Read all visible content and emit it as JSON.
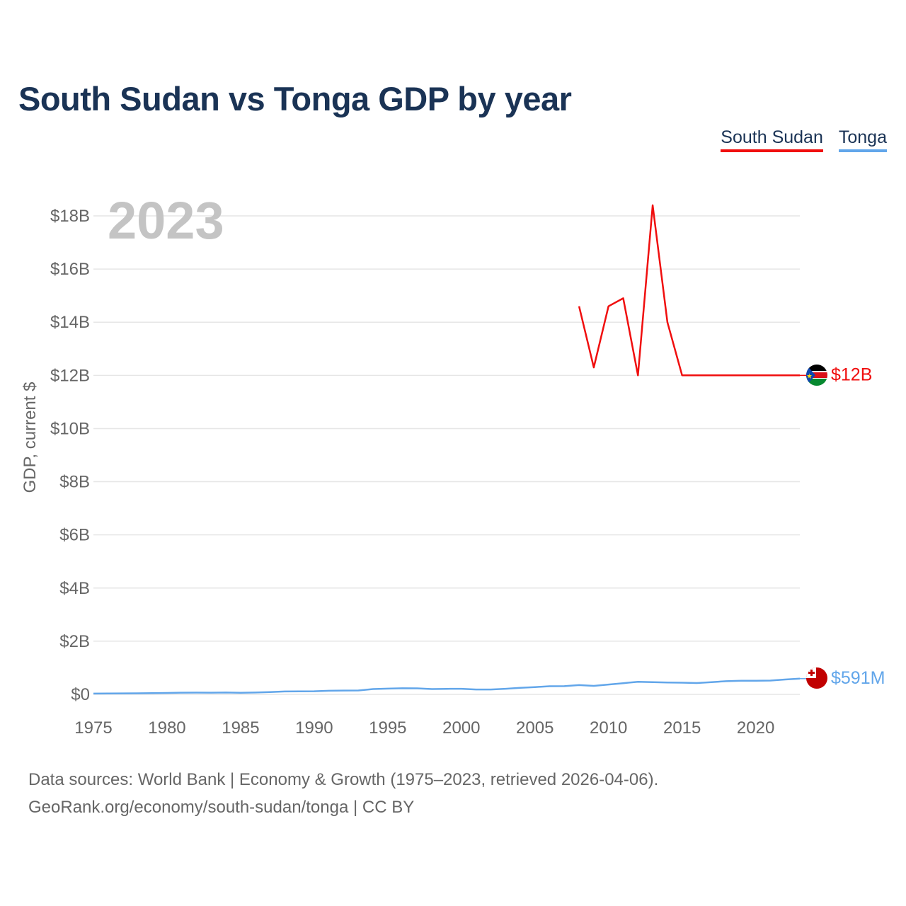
{
  "title": "South Sudan vs Tonga GDP by year",
  "legend": [
    {
      "label": "South Sudan",
      "color": "#f00e0e"
    },
    {
      "label": "Tonga",
      "color": "#62a6ea"
    }
  ],
  "year_label": "2023",
  "source": {
    "line1": "Data sources: World Bank | Economy & Growth (1975–2023, retrieved 2026-04-06).",
    "line2": "GeoRank.org/economy/south-sudan/tonga | CC BY"
  },
  "chart_data": {
    "type": "line",
    "title": "South Sudan vs Tonga GDP by year",
    "xlabel": "",
    "ylabel": "GDP, current $",
    "xlim": [
      1975,
      2023
    ],
    "ylim": [
      0,
      18000000000
    ],
    "x_ticks": [
      1975,
      1980,
      1985,
      1990,
      1995,
      2000,
      2005,
      2010,
      2015,
      2020
    ],
    "y_ticks": [
      {
        "value": 0,
        "label": "$0"
      },
      {
        "value": 2000000000,
        "label": "$2B"
      },
      {
        "value": 4000000000,
        "label": "$4B"
      },
      {
        "value": 6000000000,
        "label": "$6B"
      },
      {
        "value": 8000000000,
        "label": "$8B"
      },
      {
        "value": 10000000000,
        "label": "$10B"
      },
      {
        "value": 12000000000,
        "label": "$12B"
      },
      {
        "value": 14000000000,
        "label": "$14B"
      },
      {
        "value": 16000000000,
        "label": "$16B"
      },
      {
        "value": 18000000000,
        "label": "$18B"
      }
    ],
    "series": [
      {
        "name": "South Sudan",
        "color": "#f00e0e",
        "end_label": "$12B",
        "x": [
          2008,
          2009,
          2010,
          2011,
          2012,
          2013,
          2014,
          2015,
          2016,
          2017,
          2018,
          2019,
          2020,
          2021,
          2022,
          2023
        ],
        "values": [
          14600000000,
          12300000000,
          14600000000,
          14900000000,
          12000000000,
          18400000000,
          14000000000,
          12000000000,
          12000000000,
          12000000000,
          12000000000,
          12000000000,
          12000000000,
          12000000000,
          12000000000,
          12000000000
        ]
      },
      {
        "name": "Tonga",
        "color": "#62a6ea",
        "end_label": "$591M",
        "x": [
          1975,
          1976,
          1977,
          1978,
          1979,
          1980,
          1981,
          1982,
          1983,
          1984,
          1985,
          1986,
          1987,
          1988,
          1989,
          1990,
          1991,
          1992,
          1993,
          1994,
          1995,
          1996,
          1997,
          1998,
          1999,
          2000,
          2001,
          2002,
          2003,
          2004,
          2005,
          2006,
          2007,
          2008,
          2009,
          2010,
          2011,
          2012,
          2013,
          2014,
          2015,
          2016,
          2017,
          2018,
          2019,
          2020,
          2021,
          2022,
          2023
        ],
        "values": [
          30000000,
          33000000,
          36000000,
          40000000,
          46000000,
          54000000,
          65000000,
          67000000,
          64000000,
          70000000,
          58000000,
          69000000,
          86000000,
          110000000,
          112000000,
          118000000,
          135000000,
          145000000,
          147000000,
          200000000,
          215000000,
          230000000,
          225000000,
          200000000,
          207000000,
          210000000,
          185000000,
          185000000,
          210000000,
          245000000,
          275000000,
          305000000,
          310000000,
          350000000,
          320000000,
          370000000,
          420000000,
          475000000,
          460000000,
          445000000,
          440000000,
          425000000,
          460000000,
          495000000,
          510000000,
          510000000,
          520000000,
          560000000,
          591000000
        ]
      }
    ]
  }
}
